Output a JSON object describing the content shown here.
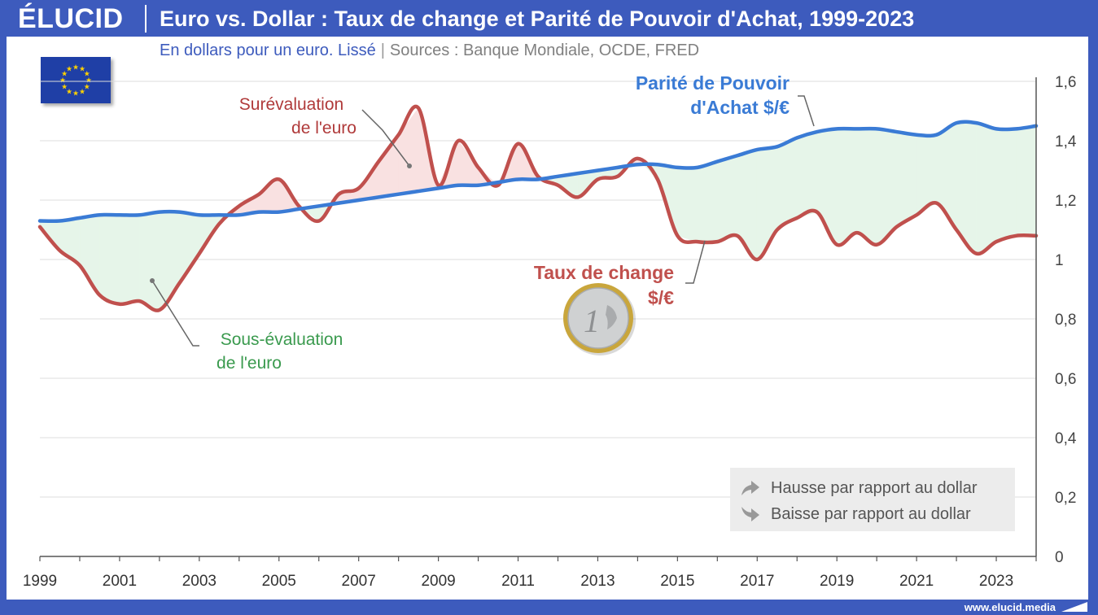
{
  "header": {
    "brand": "ÉLUCID",
    "title": "Euro vs. Dollar : Taux de change et Parité de Pouvoir d'Achat, 1999-2023"
  },
  "subtitle": {
    "unit": "En dollars pour un euro. Lissé",
    "sources": "Sources : Banque Mondiale, OCDE, FRED"
  },
  "footer": {
    "url": "www.elucid.media"
  },
  "legend": {
    "up": "Hausse par rapport au dollar",
    "down": "Baisse par rapport au dollar"
  },
  "annotations": {
    "over_line1": "Surévaluation",
    "over_line2": "de l'euro",
    "under_line1": "Sous-évaluation",
    "under_line2": "de l'euro",
    "ppp_line1": "Parité de Pouvoir",
    "ppp_line2": "d'Achat $/€",
    "fx_line1": "Taux de change",
    "fx_line2": "$/€"
  },
  "colors": {
    "brand_blue": "#3d5bbd",
    "ppp": "#3a7bd5",
    "fx": "#c0504d",
    "over_fill": "#f9e1e1",
    "under_fill": "#e6f5e9",
    "under_text": "#3a9a4e"
  },
  "chart_data": {
    "type": "line",
    "title": "Euro vs. Dollar : Taux de change et Parité de Pouvoir d'Achat, 1999-2023",
    "ylabel": "",
    "xlabel": "",
    "xlim": [
      1999,
      2024
    ],
    "ylim": [
      0,
      1.6
    ],
    "x_ticks": [
      "1999",
      "2001",
      "2003",
      "2005",
      "2007",
      "2009",
      "2011",
      "2013",
      "2015",
      "2017",
      "2019",
      "2021",
      "2023"
    ],
    "y_ticks": [
      "0",
      "0,2",
      "0,4",
      "0,6",
      "0,8",
      "1",
      "1,2",
      "1,4",
      "1,6"
    ],
    "grid": true,
    "series": [
      {
        "name": "Parité de Pouvoir d'Achat $/€",
        "x": [
          1999,
          1999.5,
          2000,
          2000.5,
          2001,
          2001.5,
          2002,
          2002.5,
          2003,
          2003.5,
          2004,
          2004.5,
          2005,
          2005.5,
          2006,
          2006.5,
          2007,
          2007.5,
          2008,
          2008.5,
          2009,
          2009.5,
          2010,
          2010.5,
          2011,
          2011.5,
          2012,
          2012.5,
          2013,
          2013.5,
          2014,
          2014.5,
          2015,
          2015.5,
          2016,
          2016.5,
          2017,
          2017.5,
          2018,
          2018.5,
          2019,
          2019.5,
          2020,
          2020.5,
          2021,
          2021.5,
          2022,
          2022.5,
          2023,
          2023.5,
          2024
        ],
        "values": [
          1.13,
          1.13,
          1.14,
          1.15,
          1.15,
          1.15,
          1.16,
          1.16,
          1.15,
          1.15,
          1.15,
          1.16,
          1.16,
          1.17,
          1.18,
          1.19,
          1.2,
          1.21,
          1.22,
          1.23,
          1.24,
          1.25,
          1.25,
          1.26,
          1.27,
          1.27,
          1.28,
          1.29,
          1.3,
          1.31,
          1.32,
          1.32,
          1.31,
          1.31,
          1.33,
          1.35,
          1.37,
          1.38,
          1.41,
          1.43,
          1.44,
          1.44,
          1.44,
          1.43,
          1.42,
          1.42,
          1.46,
          1.46,
          1.44,
          1.44,
          1.45
        ]
      },
      {
        "name": "Taux de change $/€",
        "x": [
          1999,
          1999.5,
          2000,
          2000.5,
          2001,
          2001.5,
          2002,
          2002.5,
          2003,
          2003.5,
          2004,
          2004.5,
          2005,
          2005.5,
          2006,
          2006.5,
          2007,
          2007.5,
          2008,
          2008.5,
          2009,
          2009.5,
          2010,
          2010.5,
          2011,
          2011.5,
          2012,
          2012.5,
          2013,
          2013.5,
          2014,
          2014.5,
          2015,
          2015.5,
          2016,
          2016.5,
          2017,
          2017.5,
          2018,
          2018.5,
          2019,
          2019.5,
          2020,
          2020.5,
          2021,
          2021.5,
          2022,
          2022.5,
          2023,
          2023.5,
          2024
        ],
        "values": [
          1.11,
          1.03,
          0.98,
          0.88,
          0.85,
          0.86,
          0.83,
          0.92,
          1.02,
          1.12,
          1.18,
          1.22,
          1.27,
          1.18,
          1.13,
          1.22,
          1.24,
          1.33,
          1.42,
          1.51,
          1.25,
          1.4,
          1.31,
          1.25,
          1.39,
          1.28,
          1.25,
          1.21,
          1.27,
          1.28,
          1.34,
          1.27,
          1.08,
          1.06,
          1.06,
          1.08,
          1.0,
          1.1,
          1.14,
          1.16,
          1.05,
          1.09,
          1.05,
          1.11,
          1.15,
          1.19,
          1.1,
          1.02,
          1.06,
          1.08,
          1.08
        ]
      }
    ],
    "legend": [
      "Hausse par rapport au dollar",
      "Baisse par rapport au dollar"
    ],
    "annotations": [
      "Surévaluation de l'euro",
      "Sous-évaluation de l'euro",
      "Parité de Pouvoir d'Achat $/€",
      "Taux de change $/€"
    ]
  }
}
